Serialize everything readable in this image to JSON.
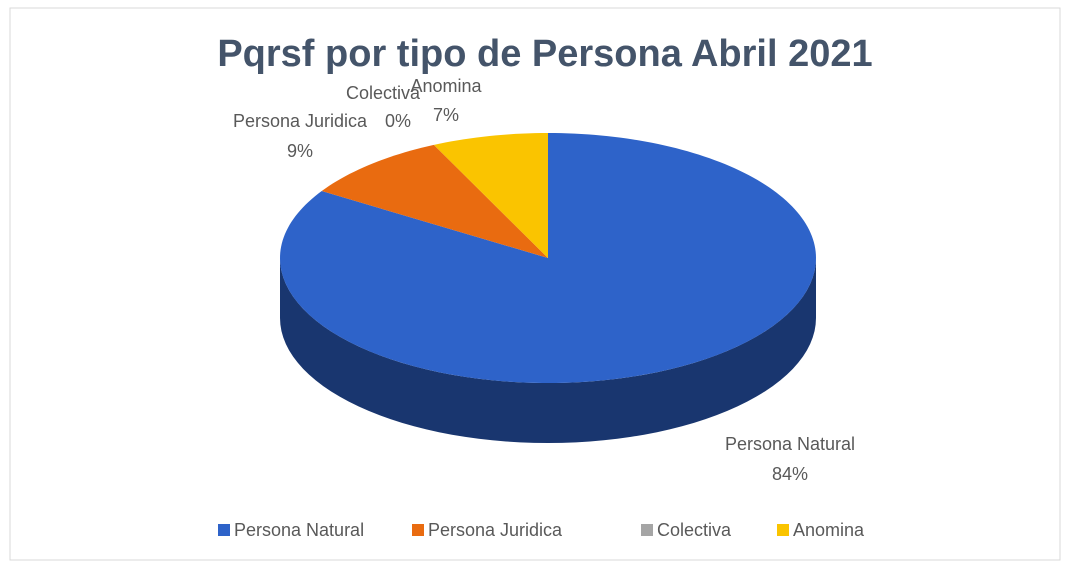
{
  "chart_data": {
    "type": "pie",
    "title": "Pqrsf por tipo de Persona Abril 2021",
    "categories": [
      "Persona Natural",
      "Persona Juridica",
      "Colectiva",
      "Anomina"
    ],
    "values": [
      84,
      9,
      0,
      7
    ],
    "value_labels": [
      "84%",
      "9%",
      "0%",
      "7%"
    ],
    "colors": [
      "#2e63c9",
      "#e96b10",
      "#a5a5a5",
      "#fac400"
    ],
    "legend": "bottom"
  }
}
